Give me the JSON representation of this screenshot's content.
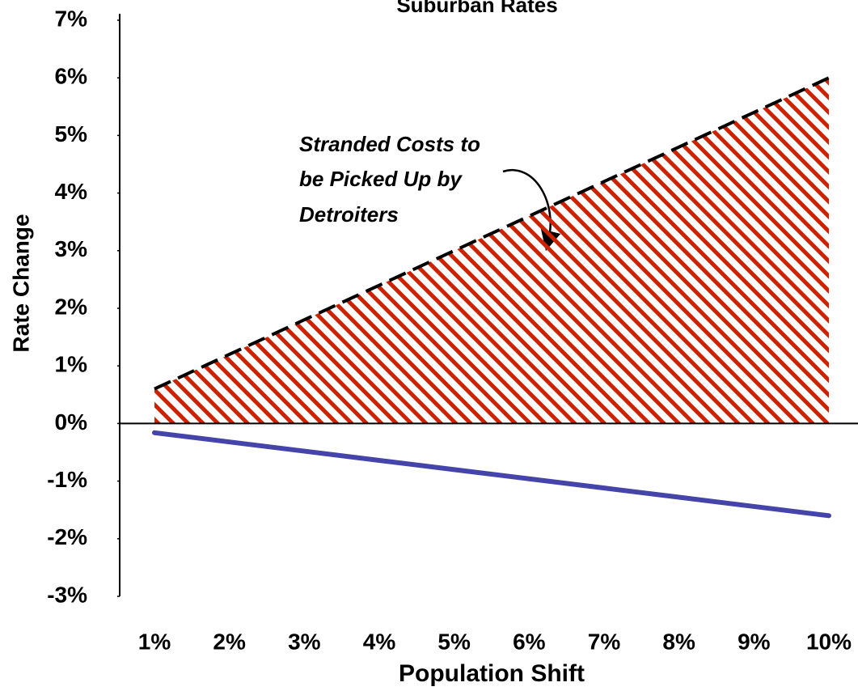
{
  "chart_data": {
    "type": "line",
    "title": "Suburban Rates",
    "x_label": "Population Shift",
    "y_label": "Rate Change",
    "categories": [
      "1%",
      "2%",
      "3%",
      "4%",
      "5%",
      "6%",
      "7%",
      "8%",
      "9%",
      "10%"
    ],
    "series": [
      {
        "color": "#000000",
        "fill_color": "#cc2200",
        "dashed": true,
        "hatched_area": true,
        "values": [
          0.6,
          1.2,
          1.8,
          2.4,
          3.0,
          3.6,
          4.2,
          4.8,
          5.4,
          6.0
        ]
      },
      {
        "color": "#4444aa",
        "dashed": false,
        "hatched_area": false,
        "values": [
          -0.16,
          -0.32,
          -0.48,
          -0.64,
          -0.8,
          -0.96,
          -1.12,
          -1.28,
          -1.44,
          -1.6
        ]
      }
    ],
    "ylim": [
      -3,
      7
    ],
    "yticks": [
      {
        "value": -3,
        "label": "-3%"
      },
      {
        "value": -2,
        "label": "-2%"
      },
      {
        "value": -1,
        "label": "-1%"
      },
      {
        "value": 0,
        "label": "0%"
      },
      {
        "value": 1,
        "label": "1%"
      },
      {
        "value": 2,
        "label": "2%"
      },
      {
        "value": 3,
        "label": "3%"
      },
      {
        "value": 4,
        "label": "4%"
      },
      {
        "value": 5,
        "label": "5%"
      },
      {
        "value": 6,
        "label": "6%"
      },
      {
        "value": 7,
        "label": "7%"
      }
    ],
    "grid": false,
    "annotation": {
      "lines": [
        "Stranded Costs to",
        "be Picked Up by",
        "Detroiters"
      ]
    }
  }
}
